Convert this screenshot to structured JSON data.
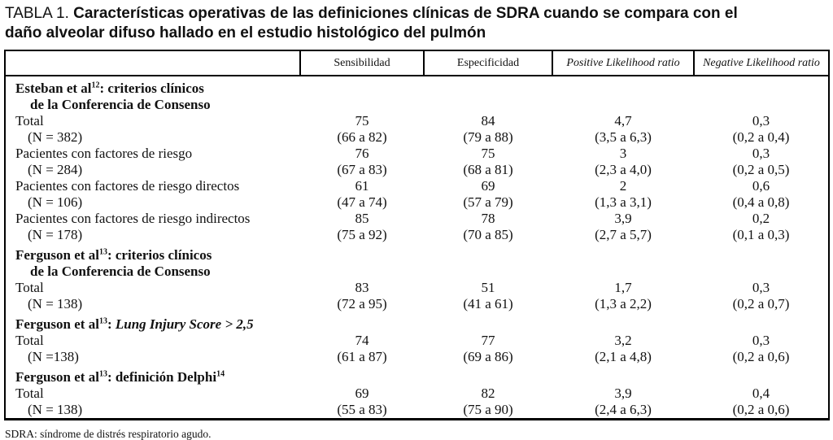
{
  "title": {
    "prefix": "TABLA 1.",
    "text": "Características operativas de las definiciones clínicas de SDRA cuando se compara con el daño alveolar difuso hallado en el estudio histológico del pulmón"
  },
  "table": {
    "columns": [
      "",
      "Sensibilidad",
      "Especificidad",
      "Positive Likelihood ratio",
      "Negative Likelihood ratio"
    ],
    "sections": [
      {
        "heading": [
          {
            "t": "Esteban et al"
          },
          {
            "t": "12",
            "style": "sup"
          },
          {
            "t": ": criterios clínicos"
          }
        ],
        "heading2": "de la Conferencia de Consenso",
        "rows": [
          {
            "label": "Total",
            "sub": "(N = 382)",
            "cells": [
              [
                "75",
                "(66 a 82)"
              ],
              [
                "84",
                "(79 a 88)"
              ],
              [
                "4,7",
                "(3,5 a 6,3)"
              ],
              [
                "0,3",
                "(0,2 a 0,4)"
              ]
            ]
          },
          {
            "label": "Pacientes con factores de riesgo",
            "sub": "(N = 284)",
            "cells": [
              [
                "76",
                "(67 a 83)"
              ],
              [
                "75",
                "(68 a 81)"
              ],
              [
                "3",
                "(2,3 a 4,0)"
              ],
              [
                "0,3",
                "(0,2 a 0,5)"
              ]
            ]
          },
          {
            "label": "Pacientes con factores de riesgo directos",
            "sub": "(N = 106)",
            "cells": [
              [
                "61",
                "(47 a 74)"
              ],
              [
                "69",
                "(57 a 79)"
              ],
              [
                "2",
                "(1,3 a 3,1)"
              ],
              [
                "0,6",
                "(0,4 a 0,8)"
              ]
            ]
          },
          {
            "label": "Pacientes con factores de riesgo indirectos",
            "sub": "(N = 178)",
            "cells": [
              [
                "85",
                "(75 a 92)"
              ],
              [
                "78",
                "(70 a 85)"
              ],
              [
                "3,9",
                "(2,7 a 5,7)"
              ],
              [
                "0,2",
                "(0,1 a 0,3)"
              ]
            ]
          }
        ]
      },
      {
        "heading": [
          {
            "t": "Ferguson et al"
          },
          {
            "t": "13",
            "style": "sup"
          },
          {
            "t": ": criterios clínicos"
          }
        ],
        "heading2": "de la Conferencia de Consenso",
        "rows": [
          {
            "label": "Total",
            "sub": "(N = 138)",
            "cells": [
              [
                "83",
                "(72 a 95)"
              ],
              [
                "51",
                "(41 a 61)"
              ],
              [
                "1,7",
                "(1,3 a 2,2)"
              ],
              [
                "0,3",
                "(0,2 a 0,7)"
              ]
            ]
          }
        ]
      },
      {
        "heading": [
          {
            "t": "Ferguson et al"
          },
          {
            "t": "13",
            "style": "sup"
          },
          {
            "t": ": "
          },
          {
            "t": "Lung Injury Score > 2,5",
            "style": "bolditalic"
          }
        ],
        "heading2": null,
        "rows": [
          {
            "label": "Total",
            "sub": "(N =138)",
            "cells": [
              [
                "74",
                "(61 a 87)"
              ],
              [
                "77",
                "(69 a 86)"
              ],
              [
                "3,2",
                "(2,1 a 4,8)"
              ],
              [
                "0,3",
                "(0,2 a 0,6)"
              ]
            ]
          }
        ]
      },
      {
        "heading": [
          {
            "t": "Ferguson et al"
          },
          {
            "t": "13",
            "style": "sup"
          },
          {
            "t": ": definición Delphi"
          },
          {
            "t": "14",
            "style": "sup"
          }
        ],
        "heading2": null,
        "rows": [
          {
            "label": "Total",
            "sub": "(N = 138)",
            "cells": [
              [
                "69",
                "(55 a 83)"
              ],
              [
                "82",
                "(75 a 90)"
              ],
              [
                "3,9",
                "(2,4 a 6,3)"
              ],
              [
                "0,4",
                "(0,2 a 0,6)"
              ]
            ]
          }
        ]
      }
    ]
  },
  "footnote": "SDRA: síndrome de distrés respiratorio agudo."
}
